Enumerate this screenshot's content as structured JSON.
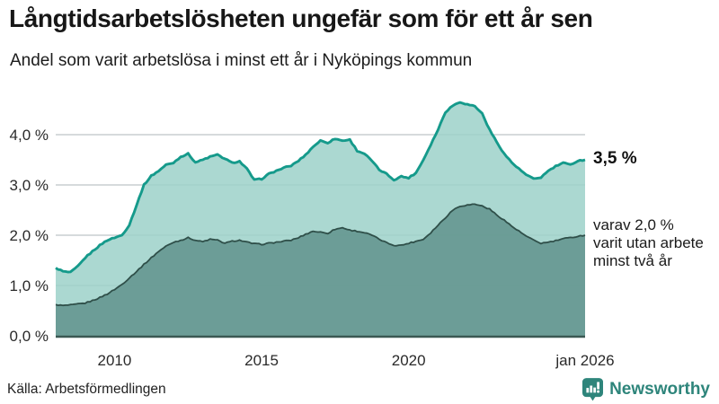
{
  "header": {
    "title": "Långtidsarbetslösheten ungefär som för ett år sen",
    "subtitle": "Andel som varit arbetslösa i minst ett år i Nyköpings kommun"
  },
  "annotations": {
    "total_end_label": "3,5 %",
    "dark_end_label": "varav 2,0 %\nvarit utan arbete\nminst två år"
  },
  "footer": {
    "source": "Källa: Arbetsförmedlingen",
    "brand": "Newsworthy"
  },
  "colors": {
    "brand_teal": "#2E857B",
    "line_total": "#159A8B",
    "area_total_fill": "#9CD1C9",
    "line_dark": "#2F4F49",
    "area_dark_fill": "#669891",
    "gridline": "#C9CED1",
    "axis_line": "#3B5953",
    "tick_text": "#2A2A2A"
  },
  "chart_data": {
    "type": "area",
    "title": "Långtidsarbetslösheten ungefär som för ett år sen",
    "subtitle": "Andel som varit arbetslösa i minst ett år i Nyköpings kommun",
    "unit": "%",
    "grid": true,
    "legend_position": "none",
    "x_range": [
      2008,
      2026
    ],
    "ylim": [
      0,
      4.85
    ],
    "x_ticks": [
      {
        "x": 2010,
        "label": "2010"
      },
      {
        "x": 2015,
        "label": "2015"
      },
      {
        "x": 2020,
        "label": "2020"
      },
      {
        "x": 2026,
        "label": "jan 2026"
      }
    ],
    "y_ticks": [
      {
        "v": 0,
        "label": "0,0 %"
      },
      {
        "v": 1,
        "label": "1,0 %"
      },
      {
        "v": 2,
        "label": "2,0 %"
      },
      {
        "v": 3,
        "label": "3,0 %"
      },
      {
        "v": 4,
        "label": "4,0 %"
      }
    ],
    "series": [
      {
        "name": "Arbetslösa minst ett år (andel, %)",
        "start_year": 2008,
        "interval_years": 0.25,
        "end_value_label": "3,5 %",
        "values": [
          1.35,
          1.28,
          1.26,
          1.38,
          1.55,
          1.68,
          1.8,
          1.9,
          1.95,
          2.0,
          2.2,
          2.6,
          3.0,
          3.18,
          3.28,
          3.4,
          3.44,
          3.56,
          3.62,
          3.45,
          3.5,
          3.56,
          3.6,
          3.52,
          3.44,
          3.47,
          3.32,
          3.1,
          3.12,
          3.22,
          3.28,
          3.34,
          3.38,
          3.48,
          3.6,
          3.76,
          3.88,
          3.84,
          3.92,
          3.88,
          3.9,
          3.68,
          3.62,
          3.48,
          3.3,
          3.22,
          3.1,
          3.17,
          3.14,
          3.24,
          3.5,
          3.8,
          4.1,
          4.45,
          4.58,
          4.65,
          4.6,
          4.57,
          4.42,
          4.1,
          3.85,
          3.62,
          3.45,
          3.32,
          3.2,
          3.12,
          3.15,
          3.28,
          3.37,
          3.44,
          3.4,
          3.48,
          3.5
        ]
      },
      {
        "name": "Varav utan arbete minst två år (andel, %)",
        "start_year": 2008,
        "interval_years": 0.25,
        "end_value_label": "varav 2,0 %",
        "values": [
          0.62,
          0.6,
          0.61,
          0.63,
          0.65,
          0.7,
          0.76,
          0.83,
          0.92,
          1.02,
          1.15,
          1.28,
          1.42,
          1.55,
          1.68,
          1.78,
          1.86,
          1.9,
          1.95,
          1.9,
          1.87,
          1.92,
          1.9,
          1.84,
          1.88,
          1.9,
          1.86,
          1.83,
          1.82,
          1.84,
          1.86,
          1.88,
          1.9,
          1.95,
          2.02,
          2.08,
          2.06,
          2.04,
          2.12,
          2.15,
          2.1,
          2.08,
          2.05,
          2.0,
          1.92,
          1.85,
          1.8,
          1.8,
          1.84,
          1.88,
          1.92,
          2.05,
          2.2,
          2.35,
          2.5,
          2.58,
          2.6,
          2.62,
          2.58,
          2.52,
          2.4,
          2.3,
          2.18,
          2.08,
          1.98,
          1.9,
          1.84,
          1.86,
          1.89,
          1.93,
          1.95,
          1.98,
          2.0
        ]
      }
    ]
  }
}
